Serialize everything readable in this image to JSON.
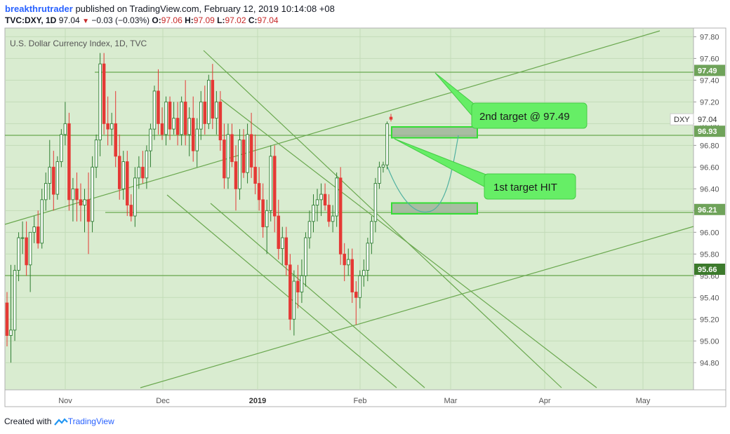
{
  "header": {
    "author": "breakthrutrader",
    "published_text": "published on TradingView.com, February 12, 2019 10:14:08 +08",
    "symbol_line": "TVC:DXY, 1D",
    "last": "97.04",
    "change": "−0.03 (−0.03%)",
    "o_label": "O:",
    "o_val": "97.06",
    "h_label": "H:",
    "h_val": "97.09",
    "l_label": "L:",
    "l_val": "97.02",
    "c_label": "C:",
    "c_val": "97.04"
  },
  "footer": {
    "created_with": "Created with",
    "brand": "TradingView"
  },
  "colors": {
    "plot_bg": "#d9ecd0",
    "grid": "#c3dbb8",
    "line": "#6aa84f",
    "bull": "#2e7d32",
    "bear": "#e53935",
    "label_green": "#6fa35a",
    "label_dark": "#3c7a2c",
    "callout": "#66ee66"
  },
  "chart_data": {
    "type": "candlestick",
    "title": "U.S. Dollar Currency Index, 1D, TVC",
    "symbol_tag": "DXY",
    "last_price": "97.04",
    "x_labels": [
      "Nov",
      "Dec",
      "2019",
      "Feb",
      "Mar",
      "Apr",
      "May"
    ],
    "y_ticks": [
      "94.80",
      "95.00",
      "95.20",
      "95.40",
      "95.60",
      "95.80",
      "96.00",
      "96.20",
      "96.40",
      "96.60",
      "96.80",
      "97.00",
      "97.20",
      "97.40",
      "97.60",
      "97.80"
    ],
    "ylim": [
      94.55,
      97.88
    ],
    "levels": [
      {
        "price": 97.49,
        "label": "97.49",
        "style": "green"
      },
      {
        "price": 96.93,
        "label": "96.93",
        "style": "green"
      },
      {
        "price": 96.21,
        "label": "96.21",
        "style": "green"
      },
      {
        "price": 95.66,
        "label": "95.66",
        "style": "dark"
      }
    ],
    "zones": [
      {
        "from": 96.87,
        "to": 96.97
      },
      {
        "from": 96.17,
        "to": 96.27
      }
    ],
    "annotations": [
      "2nd target @ 97.49",
      "1st target HIT"
    ],
    "candles": [
      {
        "o": 95.35,
        "h": 95.45,
        "l": 94.95,
        "c": 95.05
      },
      {
        "o": 95.05,
        "h": 95.7,
        "l": 94.8,
        "c": 95.1
      },
      {
        "o": 95.1,
        "h": 95.7,
        "l": 95.0,
        "c": 95.65
      },
      {
        "o": 95.65,
        "h": 96.0,
        "l": 95.55,
        "c": 95.95
      },
      {
        "o": 95.95,
        "h": 96.1,
        "l": 95.8,
        "c": 95.95
      },
      {
        "o": 95.95,
        "h": 96.1,
        "l": 95.6,
        "c": 95.7
      },
      {
        "o": 95.7,
        "h": 96.0,
        "l": 95.45,
        "c": 96.0
      },
      {
        "o": 96.0,
        "h": 96.15,
        "l": 95.9,
        "c": 96.05
      },
      {
        "o": 96.05,
        "h": 96.2,
        "l": 95.85,
        "c": 95.9
      },
      {
        "o": 95.9,
        "h": 96.4,
        "l": 95.85,
        "c": 96.3
      },
      {
        "o": 96.3,
        "h": 96.55,
        "l": 96.2,
        "c": 96.45
      },
      {
        "o": 96.45,
        "h": 96.85,
        "l": 96.3,
        "c": 96.6
      },
      {
        "o": 96.6,
        "h": 96.75,
        "l": 96.2,
        "c": 96.35
      },
      {
        "o": 96.35,
        "h": 96.7,
        "l": 96.3,
        "c": 96.65
      },
      {
        "o": 96.65,
        "h": 96.95,
        "l": 96.6,
        "c": 96.9
      },
      {
        "o": 96.9,
        "h": 97.2,
        "l": 96.8,
        "c": 97.0
      },
      {
        "o": 97.0,
        "h": 97.1,
        "l": 96.2,
        "c": 96.3
      },
      {
        "o": 96.3,
        "h": 96.5,
        "l": 96.1,
        "c": 96.4
      },
      {
        "o": 96.4,
        "h": 96.55,
        "l": 96.1,
        "c": 96.3
      },
      {
        "o": 96.3,
        "h": 96.45,
        "l": 96.1,
        "c": 96.25
      },
      {
        "o": 96.25,
        "h": 96.4,
        "l": 96.0,
        "c": 96.3
      },
      {
        "o": 96.3,
        "h": 96.55,
        "l": 95.8,
        "c": 96.1
      },
      {
        "o": 96.1,
        "h": 96.7,
        "l": 96.0,
        "c": 96.6
      },
      {
        "o": 96.6,
        "h": 96.9,
        "l": 96.5,
        "c": 96.85
      },
      {
        "o": 96.85,
        "h": 97.65,
        "l": 96.7,
        "c": 97.55
      },
      {
        "o": 97.55,
        "h": 97.65,
        "l": 96.9,
        "c": 97.0
      },
      {
        "o": 97.0,
        "h": 97.25,
        "l": 96.8,
        "c": 96.95
      },
      {
        "o": 96.95,
        "h": 97.1,
        "l": 96.8,
        "c": 97.0
      },
      {
        "o": 97.0,
        "h": 97.3,
        "l": 96.6,
        "c": 96.7
      },
      {
        "o": 96.7,
        "h": 96.9,
        "l": 96.3,
        "c": 96.4
      },
      {
        "o": 96.4,
        "h": 96.75,
        "l": 96.3,
        "c": 96.65
      },
      {
        "o": 96.65,
        "h": 96.75,
        "l": 96.15,
        "c": 96.25
      },
      {
        "o": 96.25,
        "h": 96.35,
        "l": 96.1,
        "c": 96.15
      },
      {
        "o": 96.15,
        "h": 96.6,
        "l": 96.05,
        "c": 96.5
      },
      {
        "o": 96.5,
        "h": 96.7,
        "l": 96.4,
        "c": 96.6
      },
      {
        "o": 96.6,
        "h": 96.75,
        "l": 96.45,
        "c": 96.5
      },
      {
        "o": 96.5,
        "h": 96.8,
        "l": 96.4,
        "c": 96.75
      },
      {
        "o": 96.75,
        "h": 97.0,
        "l": 96.6,
        "c": 96.95
      },
      {
        "o": 96.95,
        "h": 97.35,
        "l": 96.85,
        "c": 97.3
      },
      {
        "o": 97.3,
        "h": 97.5,
        "l": 96.9,
        "c": 97.0
      },
      {
        "o": 97.0,
        "h": 97.15,
        "l": 96.85,
        "c": 96.9
      },
      {
        "o": 96.9,
        "h": 97.25,
        "l": 96.8,
        "c": 97.2
      },
      {
        "o": 97.2,
        "h": 97.25,
        "l": 96.85,
        "c": 96.95
      },
      {
        "o": 96.95,
        "h": 97.2,
        "l": 96.9,
        "c": 97.05
      },
      {
        "o": 97.05,
        "h": 97.2,
        "l": 96.8,
        "c": 96.9
      },
      {
        "o": 96.9,
        "h": 97.25,
        "l": 96.8,
        "c": 97.2
      },
      {
        "o": 97.2,
        "h": 97.4,
        "l": 96.8,
        "c": 96.9
      },
      {
        "o": 96.9,
        "h": 97.15,
        "l": 96.7,
        "c": 97.05
      },
      {
        "o": 97.05,
        "h": 97.25,
        "l": 96.65,
        "c": 96.75
      },
      {
        "o": 96.75,
        "h": 97.05,
        "l": 96.6,
        "c": 96.95
      },
      {
        "o": 96.95,
        "h": 97.3,
        "l": 96.85,
        "c": 97.2
      },
      {
        "o": 97.2,
        "h": 97.35,
        "l": 96.9,
        "c": 97.0
      },
      {
        "o": 97.0,
        "h": 97.45,
        "l": 96.95,
        "c": 97.4
      },
      {
        "o": 97.4,
        "h": 97.55,
        "l": 96.95,
        "c": 97.05
      },
      {
        "o": 97.05,
        "h": 97.3,
        "l": 96.9,
        "c": 97.2
      },
      {
        "o": 97.2,
        "h": 97.3,
        "l": 96.75,
        "c": 96.85
      },
      {
        "o": 96.85,
        "h": 97.0,
        "l": 96.4,
        "c": 96.5
      },
      {
        "o": 96.5,
        "h": 97.0,
        "l": 96.4,
        "c": 96.9
      },
      {
        "o": 96.9,
        "h": 97.0,
        "l": 96.6,
        "c": 96.65
      },
      {
        "o": 96.65,
        "h": 96.8,
        "l": 96.2,
        "c": 96.4
      },
      {
        "o": 96.4,
        "h": 96.95,
        "l": 96.3,
        "c": 96.85
      },
      {
        "o": 96.85,
        "h": 96.95,
        "l": 96.5,
        "c": 96.55
      },
      {
        "o": 96.55,
        "h": 97.0,
        "l": 96.45,
        "c": 96.9
      },
      {
        "o": 96.9,
        "h": 97.1,
        "l": 96.5,
        "c": 96.6
      },
      {
        "o": 96.6,
        "h": 96.9,
        "l": 96.35,
        "c": 96.45
      },
      {
        "o": 96.45,
        "h": 96.6,
        "l": 96.2,
        "c": 96.3
      },
      {
        "o": 96.3,
        "h": 96.45,
        "l": 95.95,
        "c": 96.05
      },
      {
        "o": 96.05,
        "h": 96.3,
        "l": 95.8,
        "c": 96.2
      },
      {
        "o": 96.2,
        "h": 96.8,
        "l": 96.1,
        "c": 96.7
      },
      {
        "o": 96.7,
        "h": 96.8,
        "l": 96.0,
        "c": 96.15
      },
      {
        "o": 96.15,
        "h": 96.3,
        "l": 95.75,
        "c": 95.85
      },
      {
        "o": 95.85,
        "h": 96.05,
        "l": 95.7,
        "c": 95.95
      },
      {
        "o": 95.95,
        "h": 96.05,
        "l": 95.6,
        "c": 95.7
      },
      {
        "o": 95.7,
        "h": 95.8,
        "l": 95.1,
        "c": 95.2
      },
      {
        "o": 95.2,
        "h": 95.65,
        "l": 95.05,
        "c": 95.55
      },
      {
        "o": 95.55,
        "h": 95.7,
        "l": 95.3,
        "c": 95.45
      },
      {
        "o": 95.45,
        "h": 95.75,
        "l": 95.35,
        "c": 95.6
      },
      {
        "o": 95.6,
        "h": 96.0,
        "l": 95.5,
        "c": 95.95
      },
      {
        "o": 95.95,
        "h": 96.2,
        "l": 95.85,
        "c": 96.1
      },
      {
        "o": 96.1,
        "h": 96.35,
        "l": 96.0,
        "c": 96.25
      },
      {
        "o": 96.25,
        "h": 96.4,
        "l": 96.1,
        "c": 96.3
      },
      {
        "o": 96.3,
        "h": 96.45,
        "l": 96.15,
        "c": 96.35
      },
      {
        "o": 96.35,
        "h": 96.45,
        "l": 96.2,
        "c": 96.25
      },
      {
        "o": 96.25,
        "h": 96.35,
        "l": 96.05,
        "c": 96.1
      },
      {
        "o": 96.1,
        "h": 96.25,
        "l": 96.0,
        "c": 96.15
      },
      {
        "o": 96.15,
        "h": 96.55,
        "l": 96.05,
        "c": 96.5
      },
      {
        "o": 96.5,
        "h": 96.6,
        "l": 95.7,
        "c": 95.8
      },
      {
        "o": 95.8,
        "h": 95.9,
        "l": 95.55,
        "c": 95.7
      },
      {
        "o": 95.7,
        "h": 95.85,
        "l": 95.6,
        "c": 95.75
      },
      {
        "o": 95.75,
        "h": 95.85,
        "l": 95.35,
        "c": 95.45
      },
      {
        "o": 95.45,
        "h": 95.55,
        "l": 95.15,
        "c": 95.4
      },
      {
        "o": 95.4,
        "h": 95.65,
        "l": 95.3,
        "c": 95.6
      },
      {
        "o": 95.6,
        "h": 95.75,
        "l": 95.5,
        "c": 95.65
      },
      {
        "o": 95.65,
        "h": 95.95,
        "l": 95.55,
        "c": 95.9
      },
      {
        "o": 95.9,
        "h": 96.15,
        "l": 95.8,
        "c": 96.1
      },
      {
        "o": 96.1,
        "h": 96.5,
        "l": 96.0,
        "c": 96.45
      },
      {
        "o": 96.45,
        "h": 96.65,
        "l": 96.4,
        "c": 96.6
      },
      {
        "o": 96.6,
        "h": 96.65,
        "l": 96.55,
        "c": 96.62
      },
      {
        "o": 96.62,
        "h": 97.02,
        "l": 96.58,
        "c": 97.0
      },
      {
        "o": 97.06,
        "h": 97.09,
        "l": 97.02,
        "c": 97.04
      }
    ]
  }
}
